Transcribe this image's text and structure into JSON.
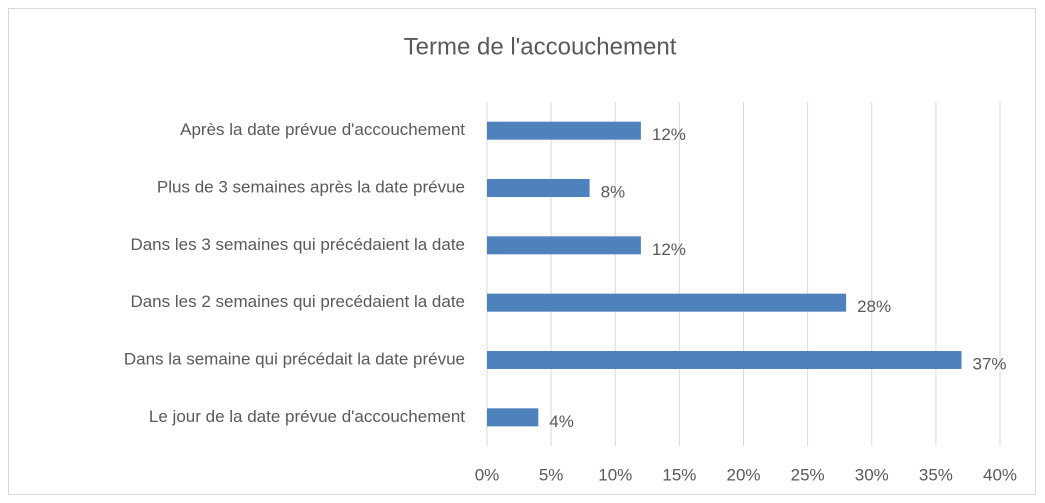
{
  "chart_data": {
    "type": "bar",
    "orientation": "horizontal",
    "title": "Terme de l'accouchement",
    "categories": [
      "Après la date prévue d'accouchement",
      "Plus de 3 semaines après la date prévue",
      "Dans les 3 semaines qui précédaient la date",
      "Dans les 2 semaines qui precédaient la date",
      "Dans la semaine qui précédait la date prévue",
      "Le jour de la date prévue d'accouchement"
    ],
    "values": [
      12,
      8,
      12,
      28,
      37,
      4
    ],
    "value_labels": [
      "12%",
      "8%",
      "12%",
      "28%",
      "37%",
      "4%"
    ],
    "color": "#4f81bd",
    "xlim": [
      0,
      40
    ],
    "xticks": [
      {
        "value": 0,
        "label": "0%"
      },
      {
        "value": 5,
        "label": "5%"
      },
      {
        "value": 10,
        "label": "10%"
      },
      {
        "value": 15,
        "label": "15%"
      },
      {
        "value": 20,
        "label": "20%"
      },
      {
        "value": 25,
        "label": "25%"
      },
      {
        "value": 30,
        "label": "30%"
      },
      {
        "value": 35,
        "label": "35%"
      },
      {
        "value": 40,
        "label": "40%"
      }
    ],
    "grid": true
  }
}
